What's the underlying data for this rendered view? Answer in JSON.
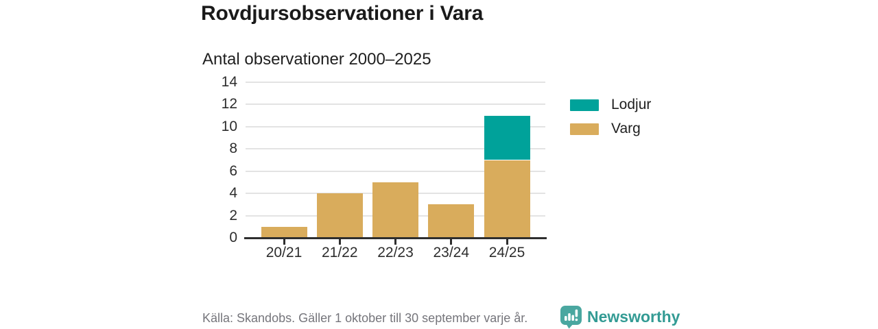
{
  "header": {
    "title": "Rovdjursobservationer i Vara",
    "subtitle": "Antal observationer 2000–2025"
  },
  "chart_data": {
    "type": "bar",
    "stacked": true,
    "categories": [
      "20/21",
      "21/22",
      "22/23",
      "23/24",
      "24/25"
    ],
    "series": [
      {
        "name": "Varg",
        "color": "#d9ac5c",
        "values": [
          1,
          4,
          5,
          3,
          7
        ]
      },
      {
        "name": "Lodjur",
        "color": "#00a29a",
        "values": [
          0,
          0,
          0,
          0,
          4
        ]
      }
    ],
    "legend": [
      {
        "label": "Lodjur",
        "color": "#00a29a"
      },
      {
        "label": "Varg",
        "color": "#d9ac5c"
      }
    ],
    "legend_position": "right",
    "title": "Antal observationer 2000–2025",
    "xlabel": "",
    "ylabel": "",
    "ylim": [
      0,
      14
    ],
    "yticks": [
      0,
      2,
      4,
      6,
      8,
      10,
      12,
      14
    ],
    "grid": true
  },
  "footer": {
    "source": "Källa: Skandobs. Gäller 1 oktober till 30 september varje år.",
    "brand": "Newsworthy"
  },
  "colors": {
    "lodjur": "#00a29a",
    "varg": "#d9ac5c",
    "gridline": "#e3e3e3",
    "axis": "#2e2e2e",
    "text_dark": "#1a1a1a",
    "source_gray": "#75757b",
    "brand_teal": "#339b94",
    "logo_teal": "#4aa7a0"
  }
}
